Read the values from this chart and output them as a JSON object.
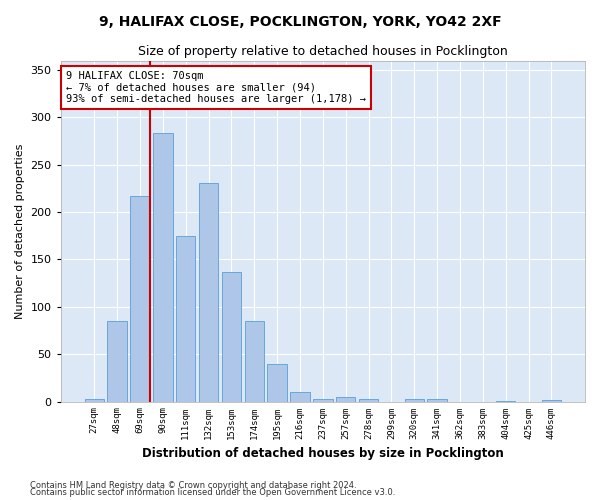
{
  "title1": "9, HALIFAX CLOSE, POCKLINGTON, YORK, YO42 2XF",
  "title2": "Size of property relative to detached houses in Pocklington",
  "xlabel": "Distribution of detached houses by size in Pocklington",
  "ylabel": "Number of detached properties",
  "footnote1": "Contains HM Land Registry data © Crown copyright and database right 2024.",
  "footnote2": "Contains public sector information licensed under the Open Government Licence v3.0.",
  "annotation_line1": "9 HALIFAX CLOSE: 70sqm",
  "annotation_line2": "← 7% of detached houses are smaller (94)",
  "annotation_line3": "93% of semi-detached houses are larger (1,178) →",
  "bar_categories": [
    "27sqm",
    "48sqm",
    "69sqm",
    "90sqm",
    "111sqm",
    "132sqm",
    "153sqm",
    "174sqm",
    "195sqm",
    "216sqm",
    "237sqm",
    "257sqm",
    "278sqm",
    "299sqm",
    "320sqm",
    "341sqm",
    "362sqm",
    "383sqm",
    "404sqm",
    "425sqm",
    "446sqm"
  ],
  "bar_values": [
    3,
    85,
    217,
    283,
    175,
    231,
    137,
    85,
    40,
    10,
    3,
    5,
    3,
    0,
    3,
    3,
    0,
    0,
    1,
    0,
    2
  ],
  "bar_color": "#aec6e8",
  "bar_edge_color": "#5a9fd4",
  "background_color": "#dde8f7",
  "grid_color": "#ffffff",
  "red_line_color": "#cc0000",
  "ylim": [
    0,
    360
  ],
  "yticks": [
    0,
    50,
    100,
    150,
    200,
    250,
    300,
    350
  ]
}
